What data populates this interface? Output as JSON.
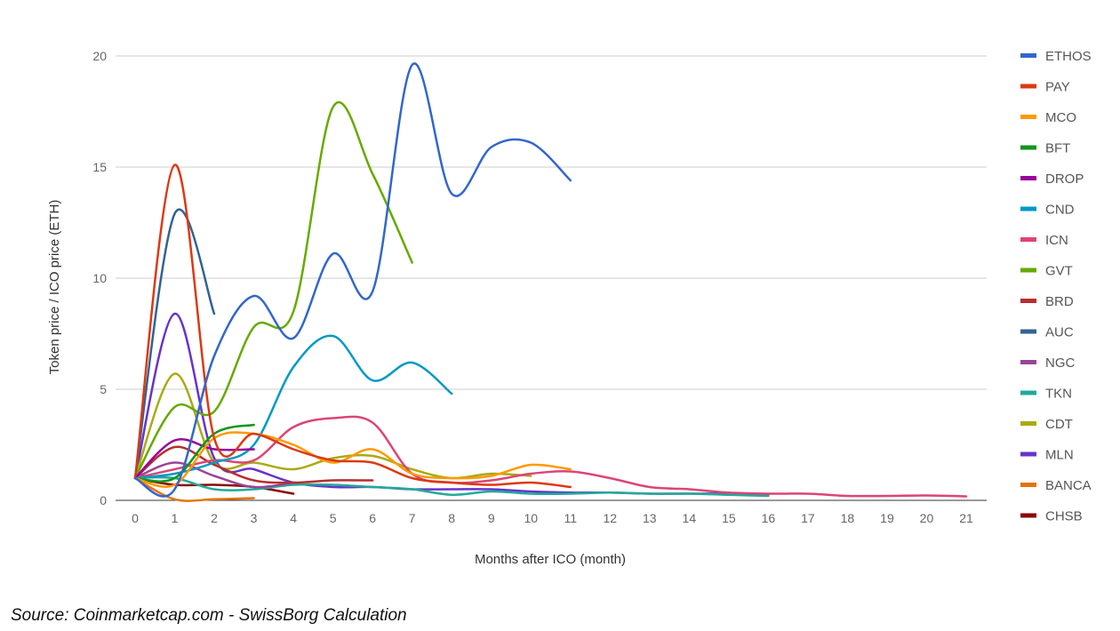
{
  "chart_data": {
    "type": "line",
    "title": "",
    "xlabel": "Months after ICO (month)",
    "ylabel": "Token price / ICO price (ETH)",
    "xlim": [
      0,
      21
    ],
    "ylim": [
      0,
      20
    ],
    "x_ticks": [
      0,
      1,
      2,
      3,
      4,
      5,
      6,
      7,
      8,
      9,
      10,
      11,
      12,
      13,
      14,
      15,
      16,
      17,
      18,
      19,
      20,
      21
    ],
    "y_ticks": [
      0,
      5,
      10,
      15,
      20
    ],
    "grid": true,
    "legend_position": "right",
    "series": [
      {
        "name": "ETHOS",
        "color": "#3366cc",
        "points": [
          [
            0,
            1
          ],
          [
            1,
            0.5
          ],
          [
            2,
            6.5
          ],
          [
            3,
            9.2
          ],
          [
            4,
            7.3
          ],
          [
            5,
            11.1
          ],
          [
            6,
            9.4
          ],
          [
            7,
            19.6
          ],
          [
            8,
            13.8
          ],
          [
            9,
            15.9
          ],
          [
            10,
            16.1
          ],
          [
            11,
            14.4
          ]
        ]
      },
      {
        "name": "PAY",
        "color": "#dc3912",
        "points": [
          [
            0,
            1
          ],
          [
            1,
            15.1
          ],
          [
            2,
            2.8
          ],
          [
            3,
            3.0
          ],
          [
            4,
            2.3
          ],
          [
            5,
            1.8
          ],
          [
            6,
            1.7
          ],
          [
            7,
            1.0
          ],
          [
            8,
            0.8
          ],
          [
            9,
            0.7
          ],
          [
            10,
            0.8
          ],
          [
            11,
            0.6
          ]
        ]
      },
      {
        "name": "MCO",
        "color": "#ff9900",
        "points": [
          [
            0,
            1
          ],
          [
            1,
            0.7
          ],
          [
            2,
            2.8
          ],
          [
            3,
            3.0
          ],
          [
            4,
            2.5
          ],
          [
            5,
            1.7
          ],
          [
            6,
            2.3
          ],
          [
            7,
            1.2
          ],
          [
            8,
            1.0
          ],
          [
            9,
            1.1
          ],
          [
            10,
            1.6
          ],
          [
            11,
            1.4
          ]
        ]
      },
      {
        "name": "BFT",
        "color": "#109618",
        "points": [
          [
            0,
            1
          ],
          [
            1,
            1.0
          ],
          [
            2,
            3.0
          ],
          [
            3,
            3.4
          ]
        ]
      },
      {
        "name": "DROP",
        "color": "#990099",
        "points": [
          [
            0,
            1
          ],
          [
            1,
            2.7
          ],
          [
            2,
            2.3
          ],
          [
            3,
            2.3
          ]
        ]
      },
      {
        "name": "CND",
        "color": "#0099c6",
        "points": [
          [
            0,
            1
          ],
          [
            1,
            1.2
          ],
          [
            2,
            1.7
          ],
          [
            3,
            2.5
          ],
          [
            4,
            6.0
          ],
          [
            5,
            7.4
          ],
          [
            6,
            5.4
          ],
          [
            7,
            6.2
          ],
          [
            8,
            4.8
          ]
        ]
      },
      {
        "name": "ICN",
        "color": "#dd4477",
        "points": [
          [
            0,
            1
          ],
          [
            1,
            1.4
          ],
          [
            2,
            1.8
          ],
          [
            3,
            1.8
          ],
          [
            4,
            3.3
          ],
          [
            5,
            3.7
          ],
          [
            6,
            3.5
          ],
          [
            7,
            1.2
          ],
          [
            8,
            0.8
          ],
          [
            9,
            0.9
          ],
          [
            10,
            1.2
          ],
          [
            11,
            1.3
          ],
          [
            12,
            1.0
          ],
          [
            13,
            0.6
          ],
          [
            14,
            0.5
          ],
          [
            15,
            0.35
          ],
          [
            16,
            0.3
          ],
          [
            17,
            0.3
          ],
          [
            18,
            0.2
          ],
          [
            19,
            0.2
          ],
          [
            20,
            0.22
          ],
          [
            21,
            0.18
          ]
        ]
      },
      {
        "name": "GVT",
        "color": "#66aa00",
        "points": [
          [
            0,
            1
          ],
          [
            1,
            4.2
          ],
          [
            2,
            4.0
          ],
          [
            3,
            7.8
          ],
          [
            4,
            8.5
          ],
          [
            5,
            17.7
          ],
          [
            6,
            14.7
          ],
          [
            7,
            10.7
          ]
        ]
      },
      {
        "name": "BRD",
        "color": "#b82e2e",
        "points": [
          [
            0,
            1
          ],
          [
            1,
            2.4
          ],
          [
            2,
            1.6
          ],
          [
            3,
            0.9
          ],
          [
            4,
            0.8
          ],
          [
            5,
            0.9
          ],
          [
            6,
            0.9
          ]
        ]
      },
      {
        "name": "AUC",
        "color": "#316395",
        "points": [
          [
            0,
            1
          ],
          [
            1,
            12.9
          ],
          [
            2,
            8.4
          ]
        ]
      },
      {
        "name": "NGC",
        "color": "#994499",
        "points": [
          [
            0,
            1
          ],
          [
            1,
            1.7
          ],
          [
            2,
            1.1
          ],
          [
            3,
            0.6
          ],
          [
            4,
            0.8
          ]
        ]
      },
      {
        "name": "TKN",
        "color": "#22aa99",
        "points": [
          [
            0,
            1
          ],
          [
            1,
            1.0
          ],
          [
            2,
            0.5
          ],
          [
            3,
            0.5
          ],
          [
            4,
            0.7
          ],
          [
            5,
            0.7
          ],
          [
            6,
            0.6
          ],
          [
            7,
            0.5
          ],
          [
            8,
            0.25
          ],
          [
            9,
            0.4
          ],
          [
            10,
            0.3
          ],
          [
            11,
            0.3
          ],
          [
            12,
            0.35
          ],
          [
            13,
            0.3
          ],
          [
            14,
            0.3
          ],
          [
            15,
            0.25
          ],
          [
            16,
            0.2
          ]
        ]
      },
      {
        "name": "CDT",
        "color": "#aaaa11",
        "points": [
          [
            0,
            1
          ],
          [
            1,
            5.7
          ],
          [
            2,
            1.7
          ],
          [
            3,
            1.7
          ],
          [
            4,
            1.4
          ],
          [
            5,
            1.9
          ],
          [
            6,
            2.0
          ],
          [
            7,
            1.4
          ],
          [
            8,
            1.0
          ],
          [
            9,
            1.2
          ],
          [
            10,
            1.1
          ]
        ]
      },
      {
        "name": "MLN",
        "color": "#6633cc",
        "points": [
          [
            0,
            1
          ],
          [
            1,
            8.4
          ],
          [
            2,
            1.9
          ],
          [
            3,
            1.4
          ],
          [
            4,
            0.8
          ],
          [
            5,
            0.6
          ],
          [
            6,
            0.6
          ],
          [
            7,
            0.5
          ],
          [
            8,
            0.5
          ],
          [
            9,
            0.5
          ],
          [
            10,
            0.4
          ],
          [
            11,
            0.35
          ],
          [
            12,
            0.35
          ],
          [
            13,
            0.3
          ],
          [
            14,
            0.3
          ],
          [
            15,
            0.3
          ],
          [
            16,
            0.25
          ]
        ]
      },
      {
        "name": "BANCA",
        "color": "#e67300",
        "points": [
          [
            0,
            1
          ],
          [
            1,
            0.05
          ],
          [
            2,
            0.05
          ],
          [
            3,
            0.1
          ]
        ]
      },
      {
        "name": "CHSB",
        "color": "#8b0707",
        "points": [
          [
            0,
            1
          ],
          [
            1,
            0.7
          ],
          [
            2,
            0.7
          ],
          [
            3,
            0.6
          ],
          [
            4,
            0.3
          ]
        ]
      }
    ]
  },
  "source_text": "Source: Coinmarketcap.com - SwissBorg Calculation"
}
